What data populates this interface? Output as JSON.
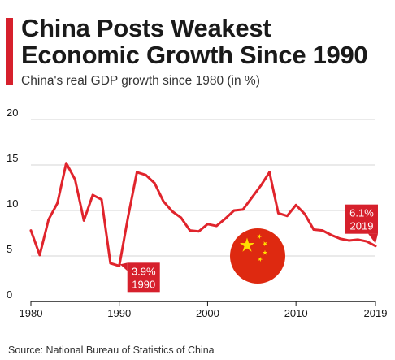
{
  "header": {
    "title_line1": "China Posts Weakest",
    "title_line2": "Economic Growth Since 1990",
    "subtitle": "China's real GDP growth since 1980 (in %)"
  },
  "footer": {
    "source": "Source: National Bureau of Statistics of China"
  },
  "colors": {
    "accent": "#d6202c",
    "line": "#e0242c",
    "grid": "#d4d4d4",
    "axis": "#1a1a1a",
    "text": "#1a1a1a",
    "flag_red": "#de2910",
    "flag_star": "#ffde00"
  },
  "chart_data": {
    "type": "line",
    "title": "China Posts Weakest Economic Growth Since 1990",
    "subtitle": "China's real GDP growth since 1980 (in %)",
    "xlabel": "",
    "ylabel": "",
    "xlim": [
      1980,
      2019
    ],
    "ylim": [
      0,
      20
    ],
    "grid": true,
    "x_ticks": [
      "1980",
      "1990",
      "2000",
      "2010",
      "2019"
    ],
    "y_ticks": [
      "0",
      "5",
      "10",
      "15",
      "20"
    ],
    "series": [
      {
        "x": [
          1980,
          1981,
          1982,
          1983,
          1984,
          1985,
          1986,
          1987,
          1988,
          1989,
          1990,
          1991,
          1992,
          1993,
          1994,
          1995,
          1996,
          1997,
          1998,
          1999,
          2000,
          2001,
          2002,
          2003,
          2004,
          2005,
          2006,
          2007,
          2008,
          2009,
          2010,
          2011,
          2012,
          2013,
          2014,
          2015,
          2016,
          2017,
          2018,
          2019
        ],
        "values": [
          7.8,
          5.1,
          9.0,
          10.8,
          15.2,
          13.4,
          8.9,
          11.7,
          11.2,
          4.2,
          3.9,
          9.3,
          14.2,
          13.9,
          13.0,
          11.0,
          9.9,
          9.2,
          7.8,
          7.7,
          8.5,
          8.3,
          9.1,
          10.0,
          10.1,
          11.4,
          12.7,
          14.2,
          9.7,
          9.4,
          10.6,
          9.6,
          7.9,
          7.8,
          7.3,
          6.9,
          6.7,
          6.8,
          6.6,
          6.1
        ]
      }
    ],
    "annotations": [
      {
        "x": 1990,
        "y": 3.9,
        "value": "3.9%",
        "year": "1990"
      },
      {
        "x": 2019,
        "y": 6.1,
        "value": "6.1%",
        "year": "2019"
      }
    ]
  }
}
